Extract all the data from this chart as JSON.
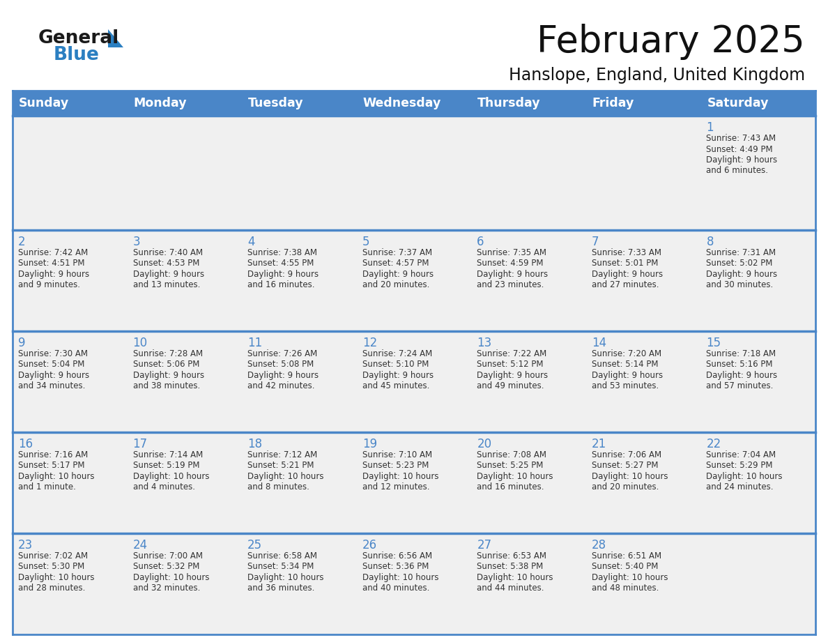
{
  "title": "February 2025",
  "subtitle": "Hanslope, England, United Kingdom",
  "header_bg": "#4a86c8",
  "header_text_color": "#ffffff",
  "cell_bg": "#f0f0f0",
  "row_border_color": "#4a86c8",
  "text_color": "#333333",
  "day_num_color": "#4a86c8",
  "logo_general_color": "#1a1a1a",
  "logo_blue_color": "#2b7fc1",
  "day_headers": [
    "Sunday",
    "Monday",
    "Tuesday",
    "Wednesday",
    "Thursday",
    "Friday",
    "Saturday"
  ],
  "calendar_data": [
    [
      null,
      null,
      null,
      null,
      null,
      null,
      {
        "day": 1,
        "sunrise": "7:43 AM",
        "sunset": "4:49 PM",
        "daylight": "9 hours\nand 6 minutes."
      }
    ],
    [
      {
        "day": 2,
        "sunrise": "7:42 AM",
        "sunset": "4:51 PM",
        "daylight": "9 hours\nand 9 minutes."
      },
      {
        "day": 3,
        "sunrise": "7:40 AM",
        "sunset": "4:53 PM",
        "daylight": "9 hours\nand 13 minutes."
      },
      {
        "day": 4,
        "sunrise": "7:38 AM",
        "sunset": "4:55 PM",
        "daylight": "9 hours\nand 16 minutes."
      },
      {
        "day": 5,
        "sunrise": "7:37 AM",
        "sunset": "4:57 PM",
        "daylight": "9 hours\nand 20 minutes."
      },
      {
        "day": 6,
        "sunrise": "7:35 AM",
        "sunset": "4:59 PM",
        "daylight": "9 hours\nand 23 minutes."
      },
      {
        "day": 7,
        "sunrise": "7:33 AM",
        "sunset": "5:01 PM",
        "daylight": "9 hours\nand 27 minutes."
      },
      {
        "day": 8,
        "sunrise": "7:31 AM",
        "sunset": "5:02 PM",
        "daylight": "9 hours\nand 30 minutes."
      }
    ],
    [
      {
        "day": 9,
        "sunrise": "7:30 AM",
        "sunset": "5:04 PM",
        "daylight": "9 hours\nand 34 minutes."
      },
      {
        "day": 10,
        "sunrise": "7:28 AM",
        "sunset": "5:06 PM",
        "daylight": "9 hours\nand 38 minutes."
      },
      {
        "day": 11,
        "sunrise": "7:26 AM",
        "sunset": "5:08 PM",
        "daylight": "9 hours\nand 42 minutes."
      },
      {
        "day": 12,
        "sunrise": "7:24 AM",
        "sunset": "5:10 PM",
        "daylight": "9 hours\nand 45 minutes."
      },
      {
        "day": 13,
        "sunrise": "7:22 AM",
        "sunset": "5:12 PM",
        "daylight": "9 hours\nand 49 minutes."
      },
      {
        "day": 14,
        "sunrise": "7:20 AM",
        "sunset": "5:14 PM",
        "daylight": "9 hours\nand 53 minutes."
      },
      {
        "day": 15,
        "sunrise": "7:18 AM",
        "sunset": "5:16 PM",
        "daylight": "9 hours\nand 57 minutes."
      }
    ],
    [
      {
        "day": 16,
        "sunrise": "7:16 AM",
        "sunset": "5:17 PM",
        "daylight": "10 hours\nand 1 minute."
      },
      {
        "day": 17,
        "sunrise": "7:14 AM",
        "sunset": "5:19 PM",
        "daylight": "10 hours\nand 4 minutes."
      },
      {
        "day": 18,
        "sunrise": "7:12 AM",
        "sunset": "5:21 PM",
        "daylight": "10 hours\nand 8 minutes."
      },
      {
        "day": 19,
        "sunrise": "7:10 AM",
        "sunset": "5:23 PM",
        "daylight": "10 hours\nand 12 minutes."
      },
      {
        "day": 20,
        "sunrise": "7:08 AM",
        "sunset": "5:25 PM",
        "daylight": "10 hours\nand 16 minutes."
      },
      {
        "day": 21,
        "sunrise": "7:06 AM",
        "sunset": "5:27 PM",
        "daylight": "10 hours\nand 20 minutes."
      },
      {
        "day": 22,
        "sunrise": "7:04 AM",
        "sunset": "5:29 PM",
        "daylight": "10 hours\nand 24 minutes."
      }
    ],
    [
      {
        "day": 23,
        "sunrise": "7:02 AM",
        "sunset": "5:30 PM",
        "daylight": "10 hours\nand 28 minutes."
      },
      {
        "day": 24,
        "sunrise": "7:00 AM",
        "sunset": "5:32 PM",
        "daylight": "10 hours\nand 32 minutes."
      },
      {
        "day": 25,
        "sunrise": "6:58 AM",
        "sunset": "5:34 PM",
        "daylight": "10 hours\nand 36 minutes."
      },
      {
        "day": 26,
        "sunrise": "6:56 AM",
        "sunset": "5:36 PM",
        "daylight": "10 hours\nand 40 minutes."
      },
      {
        "day": 27,
        "sunrise": "6:53 AM",
        "sunset": "5:38 PM",
        "daylight": "10 hours\nand 44 minutes."
      },
      {
        "day": 28,
        "sunrise": "6:51 AM",
        "sunset": "5:40 PM",
        "daylight": "10 hours\nand 48 minutes."
      },
      null
    ]
  ]
}
